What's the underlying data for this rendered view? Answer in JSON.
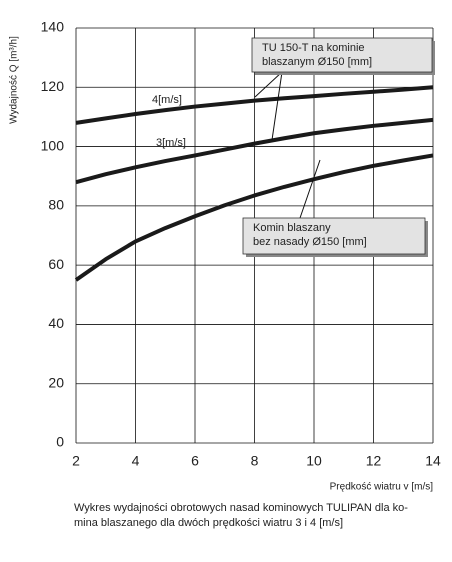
{
  "chart_data": {
    "type": "line",
    "y_label": "Wydajność Q [m³/h]",
    "x_label": "Prędkość wiatru v [m/s]",
    "caption": [
      "Wykres wydajności obrotowych nasad kominowych TULIPAN dla ko-",
      "mina blaszanego dla dwóch prędkości wiatru 3 i 4 [m/s]"
    ],
    "annotations": [
      [
        "TU 150-T na kominie",
        "blaszanym Ø150 [mm]"
      ],
      [
        "Komin blaszany",
        "bez nasady Ø150 [mm]"
      ]
    ],
    "x": [
      2,
      3,
      4,
      5,
      6,
      7,
      8,
      9,
      10,
      11,
      12,
      13,
      14
    ],
    "series": [
      {
        "name": "4[m/s]",
        "color": "#1a1a1a",
        "values": [
          108,
          109.5,
          111,
          112.3,
          113.5,
          114.5,
          115.5,
          116.3,
          117,
          117.8,
          118.5,
          119.2,
          120
        ]
      },
      {
        "name": "3[m/s]",
        "color": "#1a1a1a",
        "values": [
          88,
          90.7,
          93,
          95.1,
          97,
          99,
          101,
          102.8,
          104.5,
          105.8,
          107,
          108,
          109
        ]
      },
      {
        "color": "#1a1a1a",
        "values": [
          55,
          62,
          68,
          72.5,
          76.5,
          80.2,
          83.5,
          86.4,
          89,
          91.4,
          93.5,
          95.3,
          97
        ]
      }
    ],
    "xlim": [
      2,
      14
    ],
    "xticks": [
      2,
      4,
      6,
      8,
      10,
      12,
      14
    ],
    "ylim": [
      0,
      140
    ],
    "yticks": [
      0,
      20,
      40,
      60,
      80,
      100,
      120,
      140
    ],
    "grid": true
  }
}
